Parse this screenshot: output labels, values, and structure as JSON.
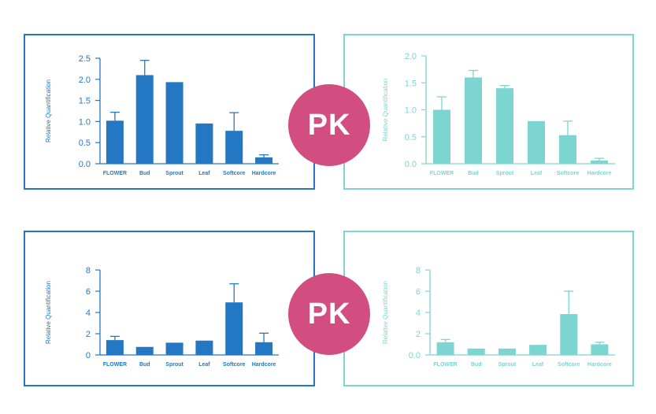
{
  "colors": {
    "blue": "#2478c3",
    "teal": "#7dd5d1",
    "pk": "#d24d80"
  },
  "pk_label": "PK",
  "chart_data": [
    {
      "type": "bar",
      "ylabel": "Relative Quantification",
      "categories": [
        "FLOWER",
        "Bud",
        "Sprout",
        "Leaf",
        "Softcore",
        "Hardcore"
      ],
      "values": [
        1.02,
        2.1,
        1.92,
        0.94,
        0.78,
        0.15
      ],
      "errors": [
        0.2,
        0.35,
        0.0,
        0.0,
        0.43,
        0.06
      ],
      "ylim": [
        0,
        2.5
      ],
      "yticks": [
        "0.0",
        "0.5",
        "1.0",
        "1.5",
        "2.0",
        "2.5"
      ],
      "color": "#2478c3"
    },
    {
      "type": "bar",
      "ylabel": "Relative Quantification",
      "categories": [
        "FLOWER",
        "Bud",
        "Sprout",
        "Leaf",
        "Softcore",
        "Hardcore"
      ],
      "values": [
        1.0,
        1.6,
        1.4,
        0.78,
        0.53,
        0.06
      ],
      "errors": [
        0.24,
        0.13,
        0.05,
        0.0,
        0.26,
        0.04
      ],
      "ylim": [
        0,
        2.0
      ],
      "yticks": [
        "0.0",
        "0.5",
        "1.0",
        "1.5",
        "2.0"
      ],
      "color": "#7dd5d1"
    },
    {
      "type": "bar",
      "ylabel": "Relative Quantification",
      "categories": [
        "FLOWER",
        "Bud",
        "Sprout",
        "Leaf",
        "Softcore",
        "Hardcore"
      ],
      "values": [
        1.4,
        0.7,
        1.1,
        1.3,
        4.95,
        1.2
      ],
      "errors": [
        0.35,
        0.0,
        0.0,
        0.0,
        1.75,
        0.85
      ],
      "ylim": [
        0,
        8
      ],
      "yticks": [
        "0",
        "2",
        "4",
        "6",
        "8"
      ],
      "color": "#2478c3"
    },
    {
      "type": "bar",
      "ylabel": "Relative Quantification",
      "categories": [
        "FLOWER",
        "Bud",
        "Sprout",
        "Leaf",
        "Softcore",
        "Hardcore"
      ],
      "values": [
        1.2,
        0.55,
        0.55,
        0.9,
        3.85,
        1.0
      ],
      "errors": [
        0.25,
        0.0,
        0.0,
        0.0,
        2.15,
        0.2
      ],
      "ylim": [
        0,
        8
      ],
      "yticks": [
        "0.0",
        "2",
        "4",
        "6",
        "8"
      ],
      "color": "#7dd5d1"
    }
  ]
}
